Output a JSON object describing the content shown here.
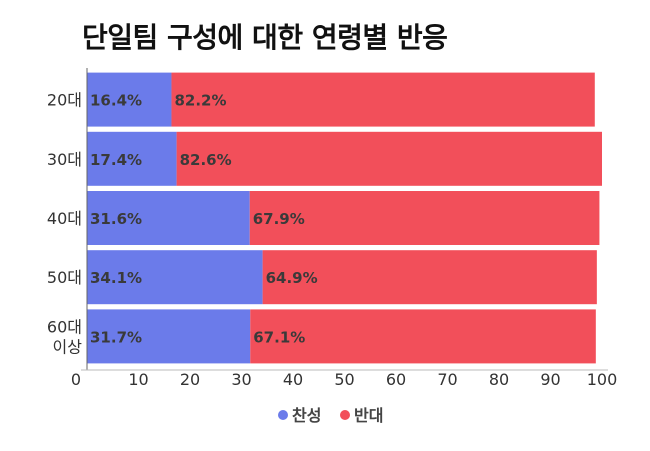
{
  "chart_data": {
    "type": "bar",
    "orientation": "horizontal",
    "stacked": true,
    "title": "단일팀 구성에 대한 연령별 반응",
    "categories": [
      [
        "20대"
      ],
      [
        "30대"
      ],
      [
        "40대"
      ],
      [
        "50대"
      ],
      [
        "60대",
        "이상"
      ]
    ],
    "series": [
      {
        "name": "찬성",
        "color": "#6b7bea",
        "values": [
          16.4,
          17.4,
          31.6,
          34.1,
          31.7
        ],
        "labels": [
          "16.4%",
          "17.4%",
          "31.6%",
          "34.1%",
          "31.7%"
        ]
      },
      {
        "name": "반대",
        "color": "#f24f5a",
        "values": [
          82.2,
          82.6,
          67.9,
          64.9,
          67.1
        ],
        "labels": [
          "82.2%",
          "82.6%",
          "67.9%",
          "64.9%",
          "67.1%"
        ]
      }
    ],
    "xlim": [
      0,
      100
    ],
    "xticks": [
      0,
      10,
      20,
      30,
      40,
      50,
      60,
      70,
      80,
      90,
      100
    ],
    "xlabel": "",
    "ylabel": "",
    "legend_position": "bottom-center",
    "grid": false
  }
}
